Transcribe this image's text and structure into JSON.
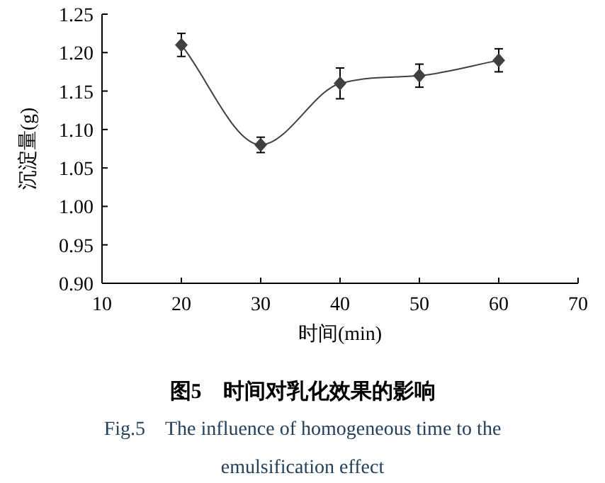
{
  "chart_data": {
    "type": "line",
    "title": "图5　时间对乳化效果的影响",
    "subtitle": "Fig.5　The influence of homogeneous time to the emulsification effect",
    "xlabel": "时间(min)",
    "ylabel": "沉淀量(g)",
    "x": [
      20,
      30,
      40,
      50,
      60
    ],
    "values": [
      1.21,
      1.08,
      1.16,
      1.17,
      1.19
    ],
    "errors": [
      0.015,
      0.01,
      0.02,
      0.015,
      0.015
    ],
    "color": "#404040",
    "marker": "diamond",
    "line_style": "solid",
    "xlim": [
      10,
      70
    ],
    "xticks": [
      10,
      20,
      30,
      40,
      50,
      60,
      70
    ],
    "ylim": [
      0.9,
      1.25
    ],
    "yticks": [
      {
        "value": 0.9,
        "label": "0.90"
      },
      {
        "value": 0.95,
        "label": "0.95"
      },
      {
        "value": 1.0,
        "label": "1.00"
      },
      {
        "value": 1.05,
        "label": "1.05"
      },
      {
        "value": 1.1,
        "label": "1.10"
      },
      {
        "value": 1.15,
        "label": "1.15"
      },
      {
        "value": 1.2,
        "label": "1.20"
      },
      {
        "value": 1.25,
        "label": "1.25"
      }
    ]
  }
}
